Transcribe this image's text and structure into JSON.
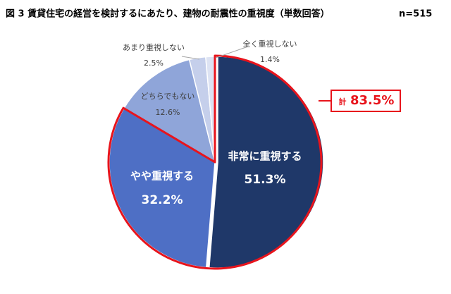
{
  "chart_data": {
    "type": "pie",
    "title": "図 3  賃貸住宅の経営を検討するにあたり、建物の耐震性の重視度（単数回答）",
    "note": "n=515",
    "categories": [
      "非常に重視する",
      "やや重視する",
      "どちらでもない",
      "あまり重視しない",
      "全く重視しない"
    ],
    "values": [
      51.3,
      32.2,
      12.6,
      2.5,
      1.4
    ],
    "value_labels": [
      "51.3%",
      "32.2%",
      "12.6%",
      "2.5%",
      "1.4%"
    ],
    "colors": [
      "#1f3869",
      "#4e6fc5",
      "#8fa5d9",
      "#c5cfeb",
      "#dde3f3"
    ],
    "highlight_color": "#e8141c",
    "annotation_prefix": "計",
    "annotation": "83.5%"
  }
}
